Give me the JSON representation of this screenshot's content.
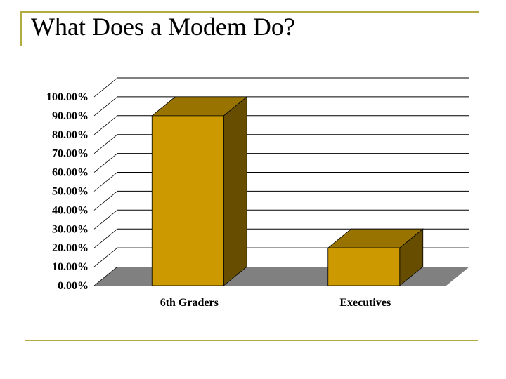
{
  "slide": {
    "title": "What Does a Modem Do?"
  },
  "colors": {
    "accent_rule": "#b3ac43",
    "bar_front": "#cc9900",
    "bar_top": "#997300",
    "bar_side": "#664d00",
    "floor": "#808080",
    "grid": "#000000"
  },
  "chart_data": {
    "type": "bar",
    "style": "3d",
    "title": "",
    "xlabel": "",
    "ylabel": "",
    "categories": [
      "6th Graders",
      "Executives"
    ],
    "values": [
      0.9,
      0.2
    ],
    "ylim": [
      0,
      1
    ],
    "yticks": [
      0,
      0.1,
      0.2,
      0.3,
      0.4,
      0.5,
      0.6,
      0.7,
      0.8,
      0.9,
      1.0
    ],
    "ytick_labels": [
      "0.00%",
      "10.00%",
      "20.00%",
      "30.00%",
      "40.00%",
      "50.00%",
      "60.00%",
      "70.00%",
      "80.00%",
      "90.00%",
      "100.00%"
    ],
    "grid": true,
    "legend": false
  }
}
